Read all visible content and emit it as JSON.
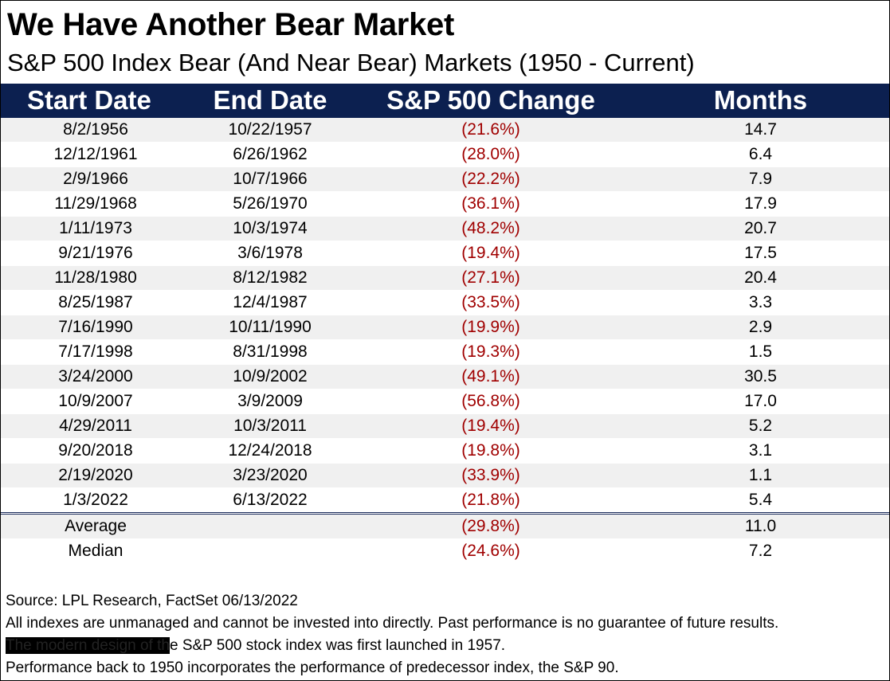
{
  "title": "We Have Another Bear Market",
  "subtitle": "S&P 500 Index Bear (And Near Bear) Markets (1950 - Current)",
  "table": {
    "headers": [
      "Start Date",
      "End Date",
      "S&P 500 Change",
      "Months"
    ],
    "rows": [
      {
        "start": "8/2/1956",
        "end": "10/22/1957",
        "change": "(21.6%)",
        "months": "14.7"
      },
      {
        "start": "12/12/1961",
        "end": "6/26/1962",
        "change": "(28.0%)",
        "months": "6.4"
      },
      {
        "start": "2/9/1966",
        "end": "10/7/1966",
        "change": "(22.2%)",
        "months": "7.9"
      },
      {
        "start": "11/29/1968",
        "end": "5/26/1970",
        "change": "(36.1%)",
        "months": "17.9"
      },
      {
        "start": "1/11/1973",
        "end": "10/3/1974",
        "change": "(48.2%)",
        "months": "20.7"
      },
      {
        "start": "9/21/1976",
        "end": "3/6/1978",
        "change": "(19.4%)",
        "months": "17.5"
      },
      {
        "start": "11/28/1980",
        "end": "8/12/1982",
        "change": "(27.1%)",
        "months": "20.4"
      },
      {
        "start": "8/25/1987",
        "end": "12/4/1987",
        "change": "(33.5%)",
        "months": "3.3"
      },
      {
        "start": "7/16/1990",
        "end": "10/11/1990",
        "change": "(19.9%)",
        "months": "2.9"
      },
      {
        "start": "7/17/1998",
        "end": "8/31/1998",
        "change": "(19.3%)",
        "months": "1.5"
      },
      {
        "start": "3/24/2000",
        "end": "10/9/2002",
        "change": "(49.1%)",
        "months": "30.5"
      },
      {
        "start": "10/9/2007",
        "end": "3/9/2009",
        "change": "(56.8%)",
        "months": "17.0"
      },
      {
        "start": "4/29/2011",
        "end": "10/3/2011",
        "change": "(19.4%)",
        "months": "5.2"
      },
      {
        "start": "9/20/2018",
        "end": "12/24/2018",
        "change": "(19.8%)",
        "months": "3.1"
      },
      {
        "start": "2/19/2020",
        "end": "3/23/2020",
        "change": "(33.9%)",
        "months": "1.1"
      },
      {
        "start": "1/3/2022",
        "end": "6/13/2022",
        "change": "(21.8%)",
        "months": "5.4"
      }
    ],
    "summary": [
      {
        "label": "Average",
        "change": "(29.8%)",
        "months": "11.0"
      },
      {
        "label": "Median",
        "change": "(24.6%)",
        "months": "7.2"
      }
    ]
  },
  "notes": {
    "source": "Source: LPL Research, FactSet 06/13/2022",
    "disclaimer": "All indexes are unmanaged and cannot be invested into directly. Past performance is no guarantee of future results.",
    "modern_prefix": "The modern design of th",
    "modern_suffix": "e S&P 500 stock index was first launched in 1957.",
    "performance": "Performance back to 1950 incorporates the performance of predecessor index, the S&P 90."
  },
  "colors": {
    "header_bg": "#0c2050",
    "negative_text": "#a00000",
    "row_shade": "#f0f0f0"
  }
}
